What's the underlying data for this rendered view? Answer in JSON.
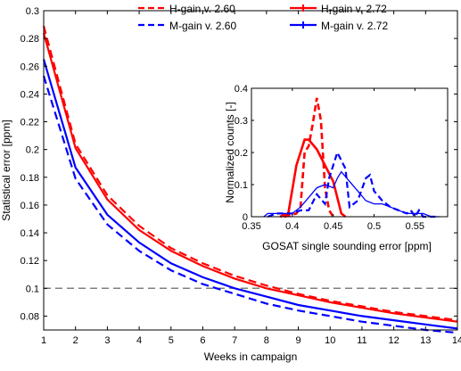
{
  "chart_data": [
    {
      "type": "line",
      "xlabel": "Weeks in campaign",
      "ylabel": "Statistical error [ppm]",
      "xlim": [
        1,
        14
      ],
      "ylim": [
        0.07,
        0.3
      ],
      "xticks": [
        1,
        2,
        3,
        4,
        5,
        6,
        7,
        8,
        9,
        10,
        11,
        12,
        13,
        14
      ],
      "yticks": [
        0.08,
        0.1,
        0.12,
        0.14,
        0.16,
        0.18,
        0.2,
        0.22,
        0.24,
        0.26,
        0.28,
        0.3
      ],
      "legend_position": "top",
      "grid": false,
      "x": [
        1,
        2,
        3,
        4,
        5,
        6,
        7,
        8,
        9,
        10,
        11,
        12,
        13,
        14
      ],
      "series": [
        {
          "name": "H-gain v. 2.60",
          "color": "#ff0000",
          "style": "dashed",
          "values": [
            0.289,
            0.204,
            0.167,
            0.145,
            0.129,
            0.118,
            0.109,
            0.102,
            0.096,
            0.091,
            0.087,
            0.083,
            0.08,
            0.077
          ]
        },
        {
          "name": "H-gain v. 2.72",
          "color": "#ff0000",
          "style": "solid",
          "values": [
            0.284,
            0.201,
            0.164,
            0.142,
            0.127,
            0.116,
            0.107,
            0.1,
            0.095,
            0.09,
            0.086,
            0.082,
            0.079,
            0.076
          ]
        },
        {
          "name": "M-gain v. 2.60",
          "color": "#0000ff",
          "style": "dashed",
          "values": [
            0.253,
            0.179,
            0.146,
            0.127,
            0.113,
            0.103,
            0.096,
            0.089,
            0.084,
            0.08,
            0.076,
            0.073,
            0.07,
            0.068
          ]
        },
        {
          "name": "M-gain v. 2.72",
          "color": "#0000ff",
          "style": "solid",
          "values": [
            0.265,
            0.187,
            0.153,
            0.133,
            0.118,
            0.108,
            0.1,
            0.094,
            0.088,
            0.084,
            0.08,
            0.077,
            0.074,
            0.071
          ]
        }
      ],
      "reference_line": {
        "y": 0.1,
        "color": "#808080",
        "style": "dashed"
      }
    },
    {
      "type": "line",
      "xlabel": "GOSAT single sounding error [ppm]",
      "ylabel": "Normalized counts [-]",
      "xlim": [
        0.35,
        0.59
      ],
      "ylim": [
        0,
        0.4
      ],
      "xticks": [
        0.35,
        0.4,
        0.45,
        0.5,
        0.55
      ],
      "yticks": [
        0,
        0.1,
        0.2,
        0.3,
        0.4
      ],
      "series": [
        {
          "name": "H-gain v. 2.60",
          "color": "#ff0000",
          "style": "dashed",
          "points": [
            [
              0.39,
              0
            ],
            [
              0.405,
              0.01
            ],
            [
              0.41,
              0.03
            ],
            [
              0.415,
              0.2
            ],
            [
              0.42,
              0.22
            ],
            [
              0.425,
              0.29
            ],
            [
              0.43,
              0.37
            ],
            [
              0.435,
              0.3
            ],
            [
              0.44,
              0.09
            ],
            [
              0.445,
              0.02
            ],
            [
              0.45,
              0
            ]
          ]
        },
        {
          "name": "H-gain v. 2.72",
          "color": "#ff0000",
          "style": "solid",
          "points": [
            [
              0.385,
              0
            ],
            [
              0.395,
              0.01
            ],
            [
              0.405,
              0.16
            ],
            [
              0.415,
              0.24
            ],
            [
              0.42,
              0.24
            ],
            [
              0.43,
              0.21
            ],
            [
              0.44,
              0.16
            ],
            [
              0.45,
              0.11
            ],
            [
              0.46,
              0.01
            ],
            [
              0.465,
              0
            ]
          ]
        },
        {
          "name": "M-gain v. 2.60",
          "color": "#0000ff",
          "style": "dashed",
          "points": [
            [
              0.37,
              0
            ],
            [
              0.38,
              0.01
            ],
            [
              0.39,
              0.01
            ],
            [
              0.4,
              0.01
            ],
            [
              0.41,
              0.02
            ],
            [
              0.42,
              0.02
            ],
            [
              0.43,
              0.07
            ],
            [
              0.44,
              0.04
            ],
            [
              0.445,
              0.12
            ],
            [
              0.455,
              0.2
            ],
            [
              0.465,
              0.15
            ],
            [
              0.47,
              0.03
            ],
            [
              0.475,
              0.04
            ],
            [
              0.48,
              0.05
            ],
            [
              0.49,
              0.12
            ],
            [
              0.495,
              0.13
            ],
            [
              0.5,
              0.08
            ],
            [
              0.51,
              0.05
            ],
            [
              0.52,
              0.03
            ],
            [
              0.53,
              0.02
            ],
            [
              0.54,
              0.01
            ],
            [
              0.545,
              0.02
            ],
            [
              0.55,
              0
            ],
            [
              0.555,
              0.02
            ],
            [
              0.56,
              0
            ],
            [
              0.575,
              0
            ]
          ]
        },
        {
          "name": "M-gain v. 2.72",
          "color": "#0000ff",
          "style": "solid",
          "points": [
            [
              0.365,
              0
            ],
            [
              0.37,
              0.01
            ],
            [
              0.38,
              0.01
            ],
            [
              0.39,
              0.01
            ],
            [
              0.4,
              0.01
            ],
            [
              0.41,
              0.03
            ],
            [
              0.42,
              0.06
            ],
            [
              0.43,
              0.09
            ],
            [
              0.44,
              0.1
            ],
            [
              0.45,
              0.09
            ],
            [
              0.455,
              0.12
            ],
            [
              0.46,
              0.14
            ],
            [
              0.47,
              0.11
            ],
            [
              0.48,
              0.08
            ],
            [
              0.49,
              0.05
            ],
            [
              0.5,
              0.04
            ],
            [
              0.51,
              0.04
            ],
            [
              0.52,
              0.03
            ],
            [
              0.53,
              0.02
            ],
            [
              0.54,
              0.01
            ],
            [
              0.55,
              0.01
            ],
            [
              0.56,
              0.01
            ],
            [
              0.57,
              0
            ],
            [
              0.58,
              0
            ]
          ]
        }
      ]
    }
  ]
}
